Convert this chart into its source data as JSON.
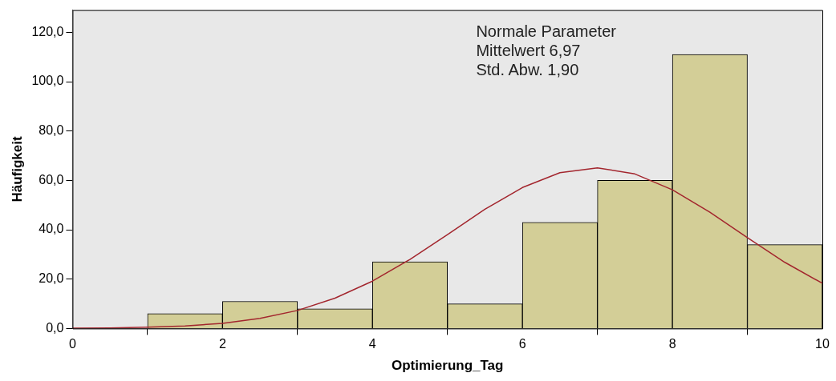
{
  "chart_data": {
    "type": "histogram",
    "xlabel": "Optimierung_Tag",
    "ylabel": "Häufigkeit",
    "bins": [
      1,
      2,
      3,
      4,
      5,
      6,
      7,
      8,
      9,
      10
    ],
    "series": [
      {
        "type": "histogram",
        "color": "#d3ce97",
        "values": [
          6,
          11,
          8,
          27,
          10,
          43,
          60,
          111,
          34
        ]
      },
      {
        "type": "line",
        "color": "#a3262e",
        "x": [
          0,
          0.5,
          1,
          1.5,
          2,
          2.5,
          3,
          3.5,
          4,
          4.5,
          5,
          5.5,
          6,
          6.5,
          7,
          7.5,
          8,
          8.5,
          9,
          9.5,
          10
        ],
        "values": [
          0.1,
          0.2,
          0.5,
          1.0,
          2.1,
          4.1,
          7.3,
          12.3,
          19.2,
          28.0,
          38.0,
          48.3,
          57.1,
          63.1,
          65.1,
          62.6,
          56.2,
          47.1,
          36.8,
          26.8,
          18.3
        ]
      }
    ],
    "xlim": [
      0,
      10
    ],
    "xticks": [
      0,
      2,
      4,
      6,
      8,
      10
    ],
    "ylim": [
      0,
      129
    ],
    "yticks": [
      {
        "value": 0,
        "label": "0,0"
      },
      {
        "value": 20,
        "label": "20,0"
      },
      {
        "value": 40,
        "label": "40,0"
      },
      {
        "value": 60,
        "label": "60,0"
      },
      {
        "value": 80,
        "label": "80,0"
      },
      {
        "value": 100,
        "label": "100,0"
      },
      {
        "value": 120,
        "label": "120,0"
      }
    ],
    "annotations": [
      "Normale Parameter",
      "Mittelwert 6,97",
      "Std. Abw. 1,90"
    ],
    "grid": false,
    "legend": false,
    "marker": "none",
    "line_style": "solid"
  }
}
